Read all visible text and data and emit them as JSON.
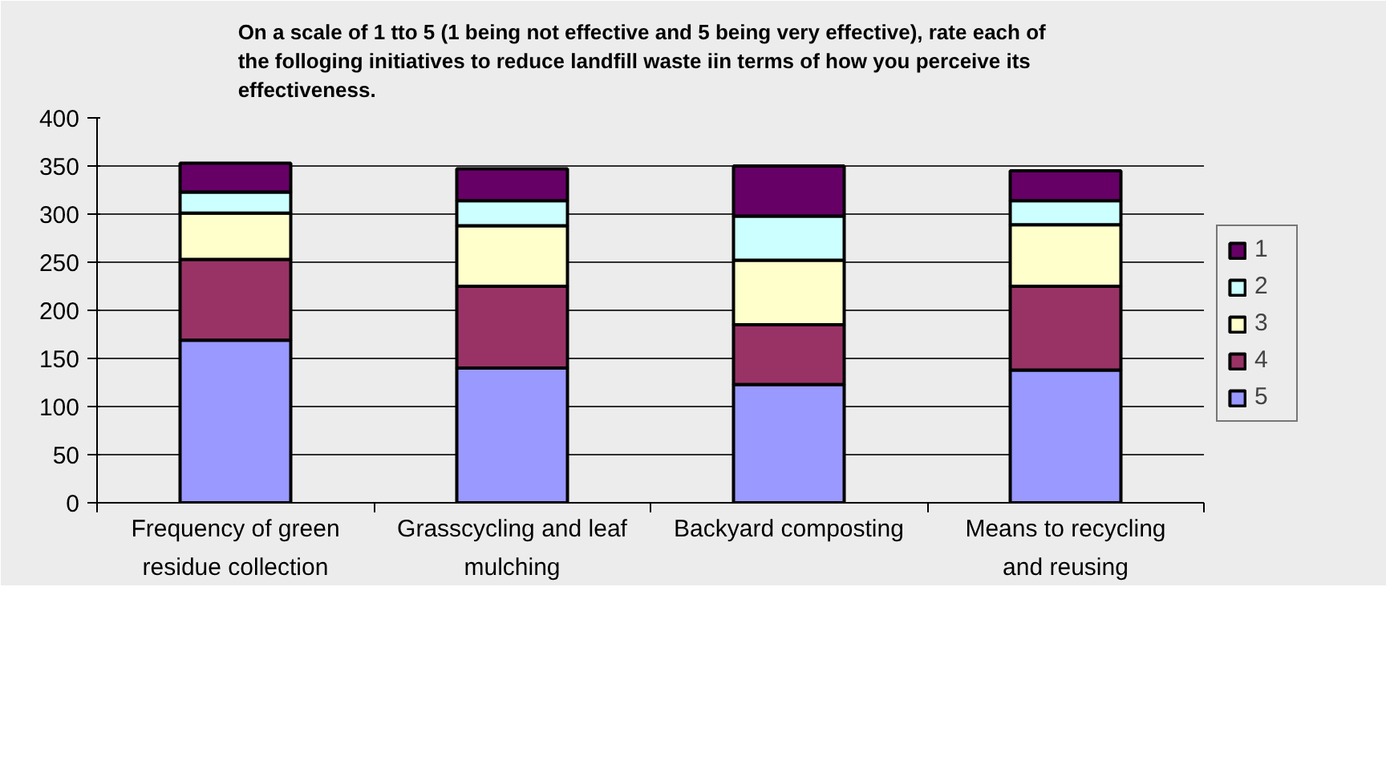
{
  "chart_data": {
    "type": "bar",
    "stacked": true,
    "title": "On a scale of 1 tto 5 (1 being  not effective and 5 being  very effective), rate  each of\nthe folloging initiatives to reduce landfill waste iin terms of how you  perceive its\neffectiveness.",
    "categories": [
      "Frequency of green\nresidue collection",
      "Grasscycling and leaf\nmulching",
      "Backyard composting",
      "Means to recycling\nand reusing"
    ],
    "series": [
      {
        "name": "5",
        "color": "#9999ff",
        "values": [
          169,
          140,
          123,
          138
        ]
      },
      {
        "name": "4",
        "color": "#993366",
        "values": [
          84,
          85,
          62,
          87
        ]
      },
      {
        "name": "3",
        "color": "#ffffcc",
        "values": [
          48,
          63,
          67,
          64
        ]
      },
      {
        "name": "2",
        "color": "#ccffff",
        "values": [
          22,
          26,
          46,
          25
        ]
      },
      {
        "name": "1",
        "color": "#660066",
        "values": [
          30,
          33,
          52,
          31
        ]
      }
    ],
    "ylim": [
      0,
      400
    ],
    "yticks": [
      0,
      50,
      100,
      150,
      200,
      250,
      300,
      350,
      400
    ],
    "grid": "y",
    "legend": "right"
  }
}
